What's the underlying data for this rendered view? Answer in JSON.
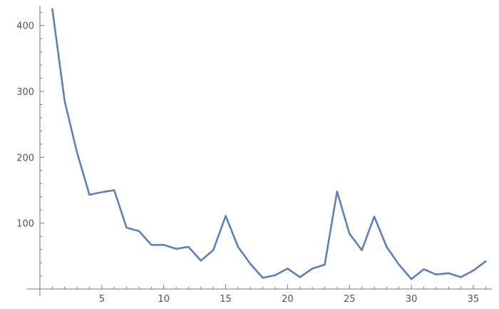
{
  "chart_data": {
    "type": "line",
    "title": "",
    "xlabel": "",
    "ylabel": "",
    "xlim": [
      0,
      36.5
    ],
    "ylim": [
      0,
      430
    ],
    "x_ticks_major": [
      5,
      10,
      15,
      20,
      25,
      30,
      35
    ],
    "x_ticks_minor": [
      1,
      2,
      3,
      4,
      6,
      7,
      8,
      9,
      11,
      12,
      13,
      14,
      16,
      17,
      18,
      19,
      21,
      22,
      23,
      24,
      26,
      27,
      28,
      29,
      31,
      32,
      33,
      34,
      36
    ],
    "y_ticks_major": [
      100,
      200,
      300,
      400
    ],
    "y_ticks_minor": [
      20,
      40,
      60,
      80,
      120,
      140,
      160,
      180,
      220,
      240,
      260,
      280,
      320,
      340,
      360,
      380,
      420
    ],
    "x_tick_labels": [
      "5",
      "10",
      "15",
      "20",
      "25",
      "30",
      "35"
    ],
    "y_tick_labels": [
      "100",
      "200",
      "300",
      "400"
    ],
    "grid": false,
    "line_color": "#5E81B5",
    "axis_color": "#777777",
    "series": [
      {
        "x": [
          1,
          2,
          3,
          4,
          5,
          6,
          7,
          8,
          9,
          10,
          11,
          12,
          13,
          14,
          15,
          16,
          17,
          18,
          19,
          20,
          21,
          22,
          23,
          24,
          25,
          26,
          27,
          28,
          29,
          30,
          31,
          32,
          33,
          34,
          35,
          36
        ],
        "values": [
          425,
          285,
          207,
          143,
          147,
          150,
          93,
          88,
          67,
          67,
          61,
          64,
          43,
          59,
          111,
          64,
          38,
          17,
          21,
          31,
          18,
          31,
          37,
          148,
          84,
          59,
          110,
          64,
          37,
          15,
          30,
          22,
          24,
          18,
          28,
          42
        ]
      }
    ]
  }
}
